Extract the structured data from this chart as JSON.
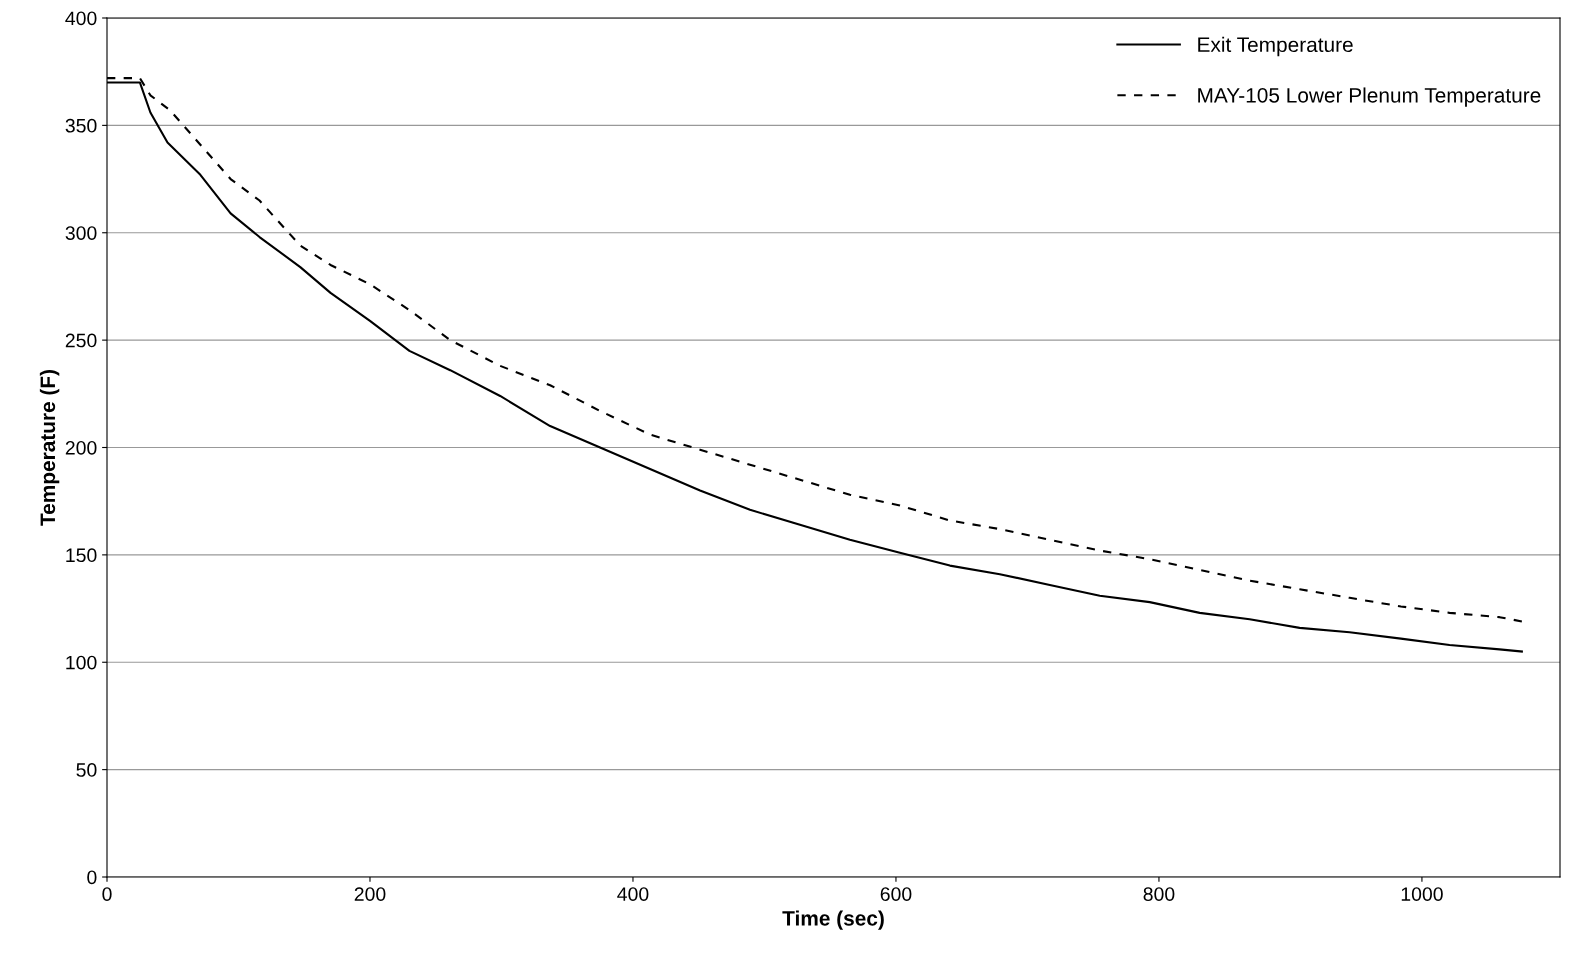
{
  "chart_data": {
    "type": "line",
    "xlabel": "Time (sec)",
    "ylabel": "Temperature (F)",
    "xlim": [
      0,
      1105
    ],
    "xticks": [
      0,
      200,
      400,
      600,
      800,
      1000
    ],
    "ylim": [
      0,
      400
    ],
    "yticks": [
      0,
      50,
      100,
      150,
      200,
      250,
      300,
      350,
      400
    ],
    "grid": "y",
    "legend": "top right",
    "marker": "none",
    "series": [
      {
        "name": "Exit Temperature",
        "color": "#000000",
        "line_style": "solid",
        "x": [
          0,
          25,
          33,
          46,
          71,
          94,
          116,
          147,
          170,
          200,
          230,
          261,
          299,
          337,
          375,
          413,
          451,
          489,
          527,
          565,
          603,
          641,
          679,
          717,
          755,
          793,
          831,
          869,
          907,
          945,
          984,
          1021,
          1059,
          1076
        ],
        "values": [
          370,
          370,
          356,
          342,
          327,
          309,
          298,
          284,
          272,
          259,
          245,
          236,
          224,
          210,
          200,
          190,
          180,
          171,
          164,
          157,
          151,
          145,
          141,
          136,
          131,
          128,
          123,
          120,
          116,
          114,
          111,
          108,
          106,
          105
        ]
      },
      {
        "name": "MAY-105 Lower Plenum Temperature",
        "color": "#000000",
        "line_style": "dashed",
        "x": [
          0,
          25,
          33,
          48,
          71,
          94,
          116,
          147,
          170,
          200,
          230,
          261,
          299,
          337,
          375,
          413,
          451,
          489,
          527,
          565,
          603,
          641,
          679,
          717,
          755,
          793,
          831,
          869,
          907,
          945,
          984,
          1021,
          1059,
          1076
        ],
        "values": [
          372,
          372,
          364,
          357,
          341,
          325,
          315,
          294,
          285,
          276,
          264,
          250,
          238,
          229,
          217,
          206,
          199,
          192,
          185,
          178,
          173,
          166,
          162,
          157,
          152,
          148,
          143,
          138,
          134,
          130,
          126,
          123,
          121,
          119
        ]
      }
    ]
  }
}
